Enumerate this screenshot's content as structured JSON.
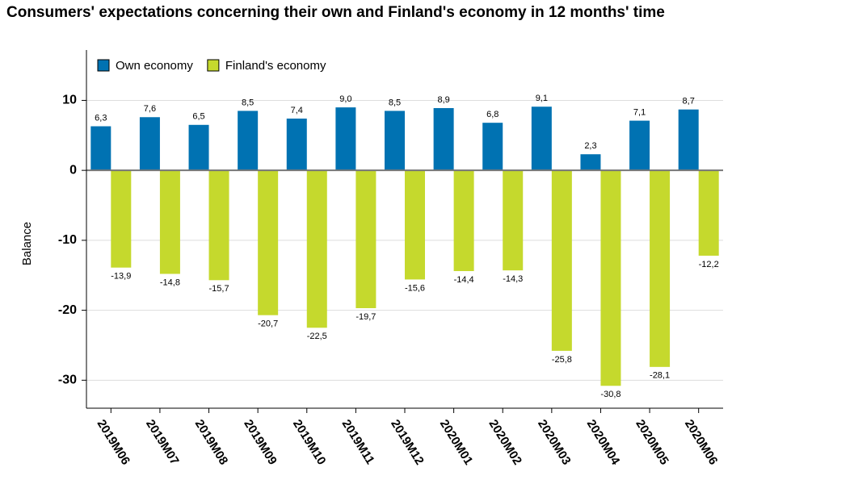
{
  "chart_data": {
    "type": "bar",
    "title": "Consumers' expectations concerning their own and Finland's economy in 12 months' time",
    "y_label": "Balance",
    "categories": [
      "2019M06",
      "2019M07",
      "2019M08",
      "2019M09",
      "2019M10",
      "2019M11",
      "2019M12",
      "2020M01",
      "2020M02",
      "2020M03",
      "2020M04",
      "2020M05",
      "2020M06"
    ],
    "series": [
      {
        "name": "Own economy",
        "color": "#0072b2",
        "values": [
          6.3,
          7.6,
          6.5,
          8.5,
          7.4,
          9.0,
          8.5,
          8.9,
          6.8,
          9.1,
          2.3,
          7.1,
          8.7
        ],
        "value_labels": [
          "6,3",
          "7,6",
          "6,5",
          "8,5",
          "7,4",
          "9,0",
          "8,5",
          "8,9",
          "6,8",
          "9,1",
          "2,3",
          "7,1",
          "8,7"
        ]
      },
      {
        "name": "Finland's economy",
        "color": "#c5d92d",
        "values": [
          -13.9,
          -14.8,
          -15.7,
          -20.7,
          -22.5,
          -19.7,
          -15.6,
          -14.4,
          -14.3,
          -25.8,
          -30.8,
          -28.1,
          -12.2
        ],
        "value_labels": [
          "-13,9",
          "-14,8",
          "-15,7",
          "-20,7",
          "-22,5",
          "-19,7",
          "-15,6",
          "-14,4",
          "-14,3",
          "-25,8",
          "-30,8",
          "-28,1",
          "-12,2"
        ]
      }
    ],
    "ylim": [
      -34,
      17.2
    ],
    "yticks": [
      -30,
      -20,
      -10,
      0,
      10
    ],
    "grid": true,
    "legend": "top-left"
  }
}
